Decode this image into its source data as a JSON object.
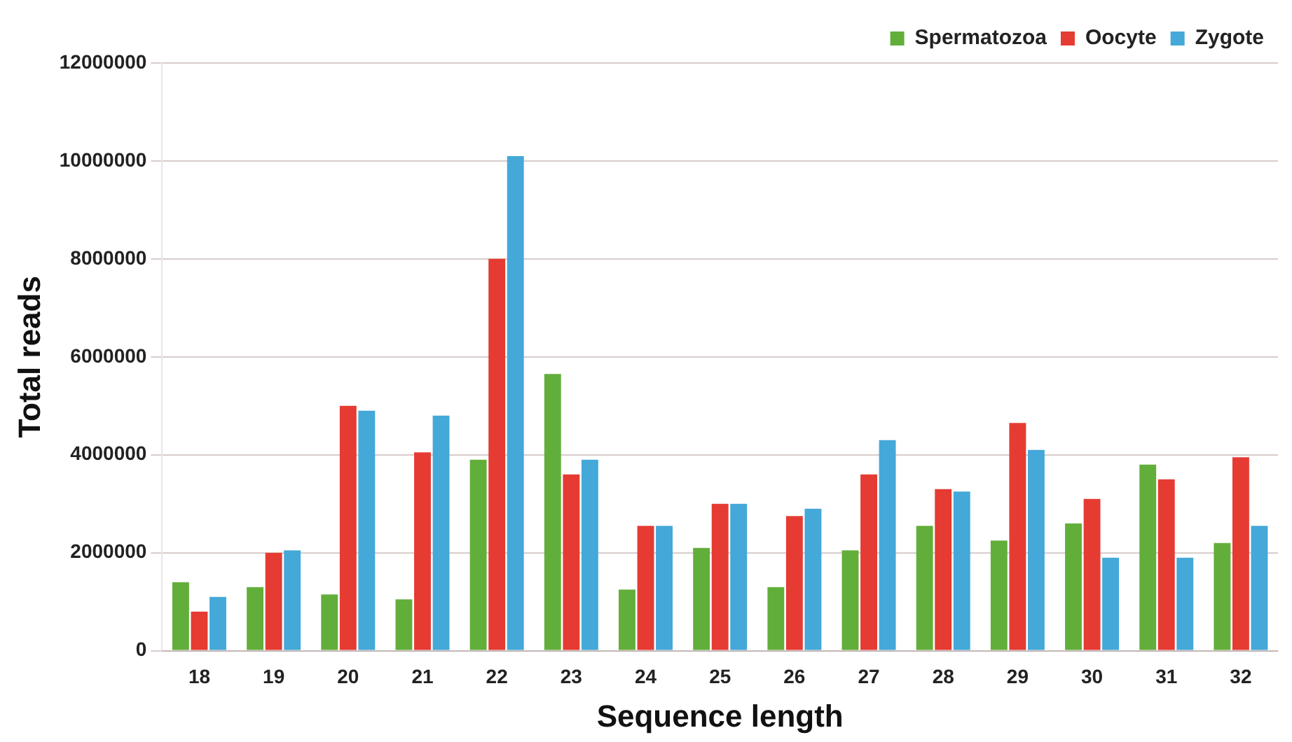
{
  "chart_data": {
    "type": "bar",
    "xlabel": "Sequence length",
    "ylabel": "Total reads",
    "categories": [
      "18",
      "19",
      "20",
      "21",
      "22",
      "23",
      "24",
      "25",
      "26",
      "27",
      "28",
      "29",
      "30",
      "31",
      "32"
    ],
    "series": [
      {
        "name": "Spermatozoa",
        "color": "#62ae3a",
        "values": [
          1400000,
          1300000,
          1150000,
          1050000,
          3900000,
          5650000,
          1250000,
          2100000,
          1300000,
          2050000,
          2550000,
          2250000,
          2600000,
          3800000,
          2200000
        ]
      },
      {
        "name": "Oocyte",
        "color": "#e53b32",
        "values": [
          800000,
          2000000,
          5000000,
          4050000,
          8000000,
          3600000,
          2550000,
          3000000,
          2750000,
          3600000,
          3300000,
          4650000,
          3100000,
          3500000,
          3950000
        ]
      },
      {
        "name": "Zygote",
        "color": "#44a8d8",
        "values": [
          1100000,
          2050000,
          4900000,
          4800000,
          10100000,
          3900000,
          2550000,
          3000000,
          2900000,
          4300000,
          3250000,
          4100000,
          1900000,
          1900000,
          2550000
        ]
      }
    ],
    "ylim": [
      0,
      12000000
    ],
    "yticks": [
      0,
      2000000,
      4000000,
      6000000,
      8000000,
      10000000,
      12000000
    ],
    "grid": "y",
    "legend": "top right"
  }
}
